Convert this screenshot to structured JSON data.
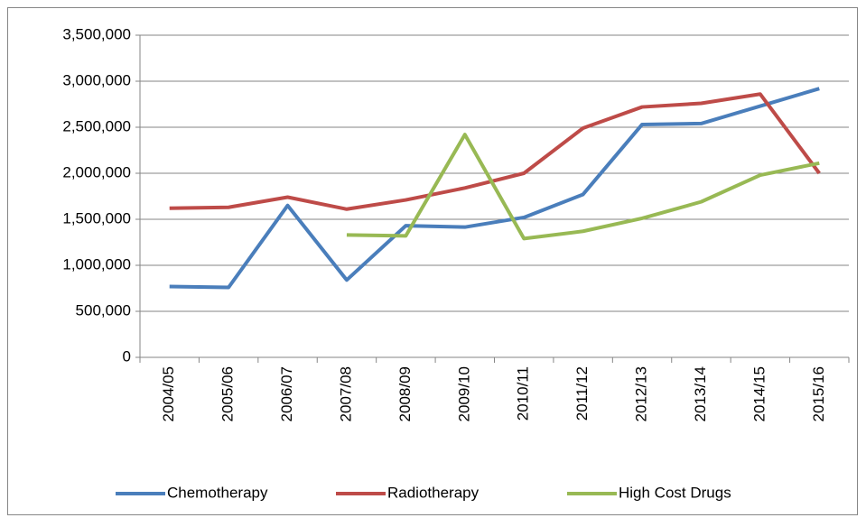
{
  "chart_data": {
    "type": "line",
    "categories": [
      "2004/05",
      "2005/06",
      "2006/07",
      "2007/08",
      "2008/09",
      "2009/10",
      "2010/11",
      "2011/12",
      "2012/13",
      "2013/14",
      "2014/15",
      "2015/16"
    ],
    "series": [
      {
        "name": "Chemotherapy",
        "color": "#4a7ebb",
        "values": [
          770000,
          760000,
          1650000,
          840000,
          1430000,
          1415000,
          1520000,
          1770000,
          2530000,
          2540000,
          2730000,
          2920000
        ]
      },
      {
        "name": "Radiotherapy",
        "color": "#be4b48",
        "values": [
          1620000,
          1630000,
          1740000,
          1610000,
          1710000,
          1840000,
          2000000,
          2490000,
          2720000,
          2760000,
          2860000,
          2000000
        ]
      },
      {
        "name": "High Cost Drugs",
        "color": "#98b954",
        "values": [
          null,
          null,
          null,
          1330000,
          1320000,
          2420000,
          1290000,
          1370000,
          1510000,
          1690000,
          1980000,
          2110000
        ]
      }
    ],
    "ylim": [
      0,
      3500000
    ],
    "yticks": [
      0,
      {
        "value": 500000,
        "label": "500,000"
      },
      {
        "value": 1000000,
        "label": "1,000,000"
      },
      {
        "value": 1500000,
        "label": "1,500,000"
      },
      {
        "value": 2000000,
        "label": "2,000,000"
      },
      {
        "value": 2500000,
        "label": "2,500,000"
      },
      {
        "value": 3000000,
        "label": "3,000,000"
      },
      {
        "value": 3500000,
        "label": "3,500,000"
      }
    ],
    "grid": true,
    "legend": "bottom"
  }
}
